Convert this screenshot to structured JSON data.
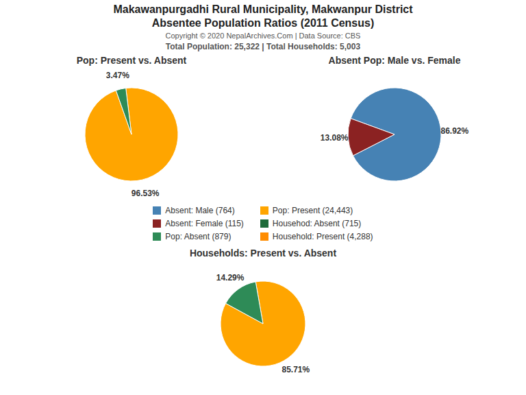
{
  "title": "Makawanpurgadhi Rural Municipality, Makwanpur District",
  "subtitle": "Absentee Population Ratios (2011 Census)",
  "annotations": [
    "Copyright © 2020 NepalArchives.Com | Data Source: CBS",
    "Total Population: 25,322 | Total Households: 5,003"
  ],
  "legend_entries": [
    {
      "name": "Absent: Male (764)",
      "color": "#4682B4"
    },
    {
      "name": "Absent: Female (115)",
      "color": "#8B2222"
    },
    {
      "name": "Pop: Absent (879)",
      "color": "#2E8B57"
    },
    {
      "name": "Pop: Present (24,443)",
      "color": "#FFA500"
    },
    {
      "name": "Househod: Absent (715)",
      "color": "#1E6B3A"
    },
    {
      "name": "Household: Present (4,288)",
      "color": "#FF8C00"
    }
  ],
  "chart_data": [
    {
      "type": "pie",
      "title": "Pop: Present vs. Absent",
      "values": [
        96.53,
        3.47
      ],
      "value_labels": [
        "96.53%",
        "3.47%"
      ],
      "colors": [
        "#FFA500",
        "#2E8B57"
      ],
      "data_labels": true
    },
    {
      "type": "pie",
      "title": "Absent Pop: Male vs. Female",
      "values": [
        86.92,
        13.08
      ],
      "value_labels": [
        "86.92%",
        "13.08%"
      ],
      "colors": [
        "#4682B4",
        "#8B2222"
      ],
      "data_labels": true
    },
    {
      "type": "pie",
      "title": "Households: Present vs. Absent",
      "values": [
        85.71,
        14.29
      ],
      "value_labels": [
        "85.71%",
        "14.29%"
      ],
      "colors": [
        "#FFA500",
        "#2E8B57"
      ],
      "data_labels": true
    }
  ]
}
